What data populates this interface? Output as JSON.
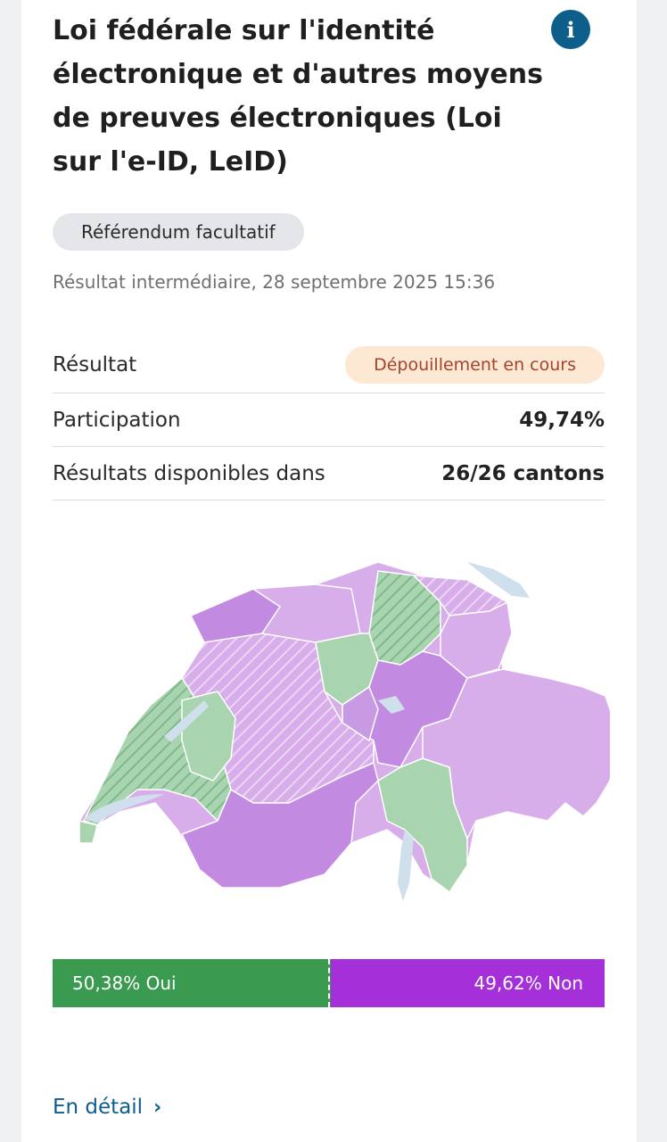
{
  "header": {
    "title": "Loi fédérale sur l'identité électronique et d'autres moyens de preuves électroniques (Loi sur l'e-ID, LeID)",
    "info_icon": "info-icon"
  },
  "tag": "Référendum facultatif",
  "timestamp": "Résultat intermédiaire, 28 septembre 2025 15:36",
  "summary": {
    "result_label": "Résultat",
    "result_status": "Dépouillement en cours",
    "participation_label": "Participation",
    "participation_value": "49,74%",
    "available_label": "Résultats disponibles dans",
    "available_value": "26/26 cantons"
  },
  "map": {
    "yes_color": "#a8d5b0",
    "no_color": "#d8aeea",
    "strong_no_color": "#c28ae0"
  },
  "vote_bar": {
    "yes_percent": 50.38,
    "no_percent": 49.62,
    "yes_label": "50,38% Oui",
    "no_label": "49,62% Non",
    "yes_color": "#3a9b50",
    "no_color": "#a52fd8"
  },
  "footer": {
    "detail_link": "En détail",
    "chevron_icon": "chevron-right-icon"
  }
}
